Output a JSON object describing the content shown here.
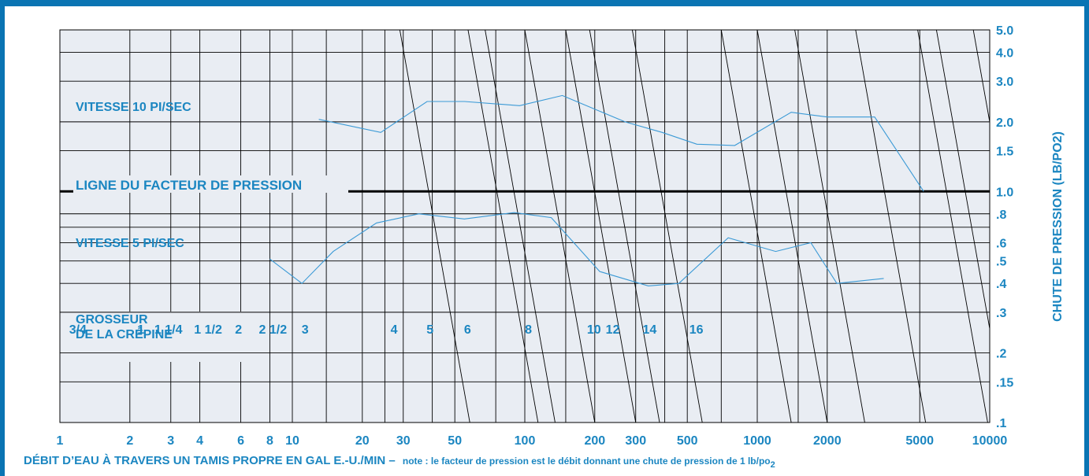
{
  "colors": {
    "frame": "#0a74b3",
    "plot_bg": "#e9edf3",
    "grid": "#000000",
    "text": "#1b86c1",
    "curve": "#3b9ad6"
  },
  "chart_data": {
    "type": "line",
    "x_scale": "log",
    "y_scale": "log",
    "xlim": [
      1,
      10000
    ],
    "ylim": [
      0.1,
      5.0
    ],
    "x_ticks": [
      {
        "value": 1,
        "label": "1"
      },
      {
        "value": 2,
        "label": "2"
      },
      {
        "value": 3,
        "label": "3"
      },
      {
        "value": 4,
        "label": "4"
      },
      {
        "value": 6,
        "label": "6"
      },
      {
        "value": 8,
        "label": "8"
      },
      {
        "value": 10,
        "label": "10"
      },
      {
        "value": 20,
        "label": "20"
      },
      {
        "value": 30,
        "label": "30"
      },
      {
        "value": 50,
        "label": "50"
      },
      {
        "value": 100,
        "label": "100"
      },
      {
        "value": 200,
        "label": "200"
      },
      {
        "value": 300,
        "label": "300"
      },
      {
        "value": 500,
        "label": "500"
      },
      {
        "value": 1000,
        "label": "1000"
      },
      {
        "value": 2000,
        "label": "2000"
      },
      {
        "value": 5000,
        "label": "5000"
      },
      {
        "value": 10000,
        "label": "10000"
      }
    ],
    "y_ticks": [
      {
        "value": 5.0,
        "label": "5.0"
      },
      {
        "value": 4.0,
        "label": "4.0"
      },
      {
        "value": 3.0,
        "label": "3.0"
      },
      {
        "value": 2.0,
        "label": "2.0"
      },
      {
        "value": 1.5,
        "label": "1.5"
      },
      {
        "value": 1.0,
        "label": "1.0"
      },
      {
        "value": 0.8,
        "label": ".8"
      },
      {
        "value": 0.6,
        "label": ".6"
      },
      {
        "value": 0.5,
        "label": ".5"
      },
      {
        "value": 0.4,
        "label": ".4"
      },
      {
        "value": 0.3,
        "label": ".3"
      },
      {
        "value": 0.2,
        "label": ".2"
      },
      {
        "value": 0.15,
        "label": ".15"
      },
      {
        "value": 0.1,
        "label": ".1"
      }
    ],
    "y_minor_lines": [
      0.7
    ],
    "x_extra_lines": [
      14,
      25,
      40,
      75,
      150,
      400,
      700,
      1500
    ],
    "ylabel": "CHUTE DE PRESSION (LB/PO2)",
    "xlabel": "DÉBIT D’EAU À TRAVERS UN TAMIS PROPRE EN GAL E.-U./MIN –",
    "xlabel_note": "note : le facteur de pression est le débit donnant une chute de pression de 1 lb/po",
    "xlabel_note_sub": "2",
    "pressure_factor_line": {
      "y": 1.0,
      "label": "LIGNE DU FACTEUR DE PRESSION"
    },
    "annotations": {
      "velocity_10": "VITESSE 10 PI/SEC",
      "velocity_5": "VITESSE 5 PI/SEC",
      "strainer_size_line1": "GROSSEUR",
      "strainer_size_line2": "DE LA CRÉPINE"
    },
    "strainer_lines": [
      {
        "label": "3/4",
        "factor": 5.8
      },
      {
        "label": "1",
        "factor": 11.4
      },
      {
        "label": "1 1/4",
        "factor": 13.5
      },
      {
        "label": "1 1/2",
        "factor": 20
      },
      {
        "label": "2",
        "factor": 30
      },
      {
        "label": "2 1/2",
        "factor": 38
      },
      {
        "label": "3",
        "factor": 58
      },
      {
        "label": "4",
        "factor": 140
      },
      {
        "label": "5",
        "factor": 200
      },
      {
        "label": "6",
        "factor": 290
      },
      {
        "label": "8",
        "factor": 530
      },
      {
        "label": "10",
        "factor": 980
      },
      {
        "label": "12",
        "factor": 1180
      },
      {
        "label": "14",
        "factor": 1700
      },
      {
        "label": "16",
        "factor": 2700
      }
    ],
    "series": [
      {
        "name": "VITESSE 10 PI/SEC",
        "x": [
          13,
          24,
          38,
          55,
          95,
          145,
          270,
          390,
          550,
          800,
          1400,
          2000,
          3200,
          5200
        ],
        "y": [
          2.05,
          1.8,
          2.45,
          2.45,
          2.35,
          2.6,
          2.0,
          1.8,
          1.6,
          1.58,
          2.2,
          2.1,
          2.1,
          1.0
        ]
      },
      {
        "name": "VITESSE 5 PI/SEC",
        "x": [
          8,
          11,
          15,
          23,
          35,
          55,
          90,
          130,
          210,
          340,
          460,
          750,
          1200,
          1700,
          2200,
          3500
        ],
        "y": [
          0.51,
          0.4,
          0.55,
          0.73,
          0.8,
          0.76,
          0.81,
          0.77,
          0.45,
          0.39,
          0.4,
          0.63,
          0.55,
          0.6,
          0.4,
          0.42
        ]
      }
    ]
  }
}
